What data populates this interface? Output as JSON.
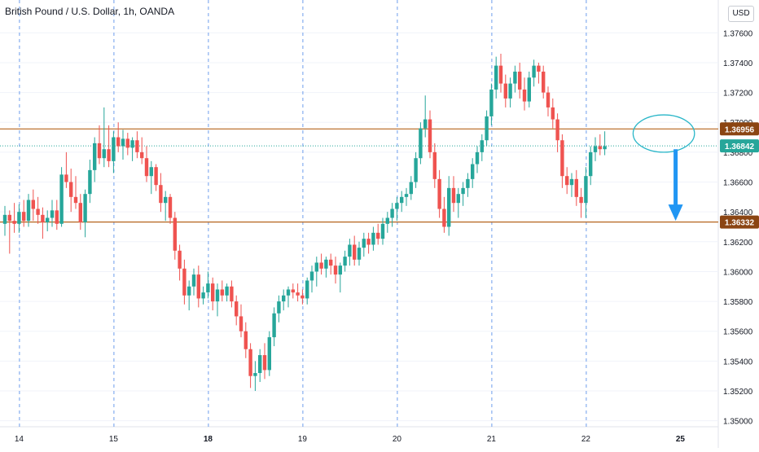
{
  "header": {
    "symbol_title": "British Pound / U.S. Dollar, 1h, OANDA",
    "currency_button": "USD"
  },
  "colors": {
    "up": "#26a69a",
    "down": "#ef5350",
    "level_line": "#b5651d",
    "level_label_bg": "#8b4513",
    "price_label_bg": "#26a69a",
    "annotation": "#29b6c8",
    "arrow": "#2196f3",
    "session_line": "#4a86e8"
  },
  "chart_data": {
    "type": "candlestick",
    "symbol": "British Pound / U.S. Dollar",
    "interval": "1h",
    "source": "OANDA",
    "ylim": [
      1.3496,
      1.3782
    ],
    "y_ticks": [
      "1.35000",
      "1.35200",
      "1.35400",
      "1.35600",
      "1.35800",
      "1.36000",
      "1.36200",
      "1.36400",
      "1.36600",
      "1.36800",
      "1.37000",
      "1.37200",
      "1.37400",
      "1.37600"
    ],
    "x_ticks": [
      {
        "label": "14",
        "bar": 3,
        "bold": false
      },
      {
        "label": "15",
        "bar": 23,
        "bold": false
      },
      {
        "label": "18",
        "bar": 43,
        "bold": true
      },
      {
        "label": "19",
        "bar": 63,
        "bold": false
      },
      {
        "label": "20",
        "bar": 83,
        "bold": false
      },
      {
        "label": "21",
        "bar": 103,
        "bold": false
      },
      {
        "label": "22",
        "bar": 123,
        "bold": false
      },
      {
        "label": "25",
        "bar": 143,
        "bold": true
      }
    ],
    "session_lines_at_bar": [
      3,
      23,
      43,
      63,
      83,
      103,
      123
    ],
    "horizontal_levels": [
      {
        "price": 1.36956,
        "label": "1.36956"
      },
      {
        "price": 1.36332,
        "label": "1.36332"
      }
    ],
    "last_price": {
      "price": 1.36842,
      "label": "1.36842"
    },
    "annotations": [
      {
        "type": "ellipse",
        "bar_from": 133,
        "bar_to": 146,
        "price_from": 1.368,
        "price_to": 1.3705
      },
      {
        "type": "arrow_down",
        "bar": 142,
        "price_from": 1.3682,
        "price_to": 1.3634
      }
    ],
    "candles": [
      [
        1.3632,
        1.3644,
        1.3624,
        1.3638
      ],
      [
        1.3638,
        1.3641,
        1.3612,
        1.3634
      ],
      [
        1.3634,
        1.3646,
        1.3626,
        1.3632
      ],
      [
        1.3632,
        1.3645,
        1.3626,
        1.364
      ],
      [
        1.364,
        1.3648,
        1.363,
        1.3634
      ],
      [
        1.3634,
        1.3652,
        1.363,
        1.3648
      ],
      [
        1.3648,
        1.3655,
        1.3634,
        1.3642
      ],
      [
        1.3642,
        1.365,
        1.3632,
        1.3638
      ],
      [
        1.3638,
        1.3643,
        1.3622,
        1.3633
      ],
      [
        1.3633,
        1.3641,
        1.3627,
        1.3636
      ],
      [
        1.3636,
        1.3648,
        1.363,
        1.3641
      ],
      [
        1.3641,
        1.3648,
        1.3628,
        1.3632
      ],
      [
        1.3632,
        1.367,
        1.363,
        1.3665
      ],
      [
        1.3665,
        1.368,
        1.3656,
        1.366
      ],
      [
        1.366,
        1.3669,
        1.364,
        1.365
      ],
      [
        1.365,
        1.3664,
        1.3642,
        1.3646
      ],
      [
        1.3646,
        1.3652,
        1.3628,
        1.3633
      ],
      [
        1.3633,
        1.3655,
        1.3623,
        1.3652
      ],
      [
        1.3652,
        1.3675,
        1.3646,
        1.3668
      ],
      [
        1.3668,
        1.369,
        1.366,
        1.3686
      ],
      [
        1.3686,
        1.3698,
        1.3672,
        1.3676
      ],
      [
        1.3676,
        1.371,
        1.367,
        1.3682
      ],
      [
        1.3682,
        1.3698,
        1.367,
        1.3674
      ],
      [
        1.3674,
        1.3694,
        1.3666,
        1.369
      ],
      [
        1.369,
        1.37,
        1.368,
        1.3684
      ],
      [
        1.3684,
        1.3695,
        1.3675,
        1.3689
      ],
      [
        1.3689,
        1.3693,
        1.3678,
        1.3683
      ],
      [
        1.3683,
        1.369,
        1.3674,
        1.3688
      ],
      [
        1.3688,
        1.3694,
        1.3676,
        1.368
      ],
      [
        1.368,
        1.369,
        1.3672,
        1.3676
      ],
      [
        1.3676,
        1.3684,
        1.366,
        1.3664
      ],
      [
        1.3664,
        1.3674,
        1.3652,
        1.367
      ],
      [
        1.367,
        1.3672,
        1.3654,
        1.3658
      ],
      [
        1.3658,
        1.3666,
        1.364,
        1.3646
      ],
      [
        1.3646,
        1.3654,
        1.3634,
        1.365
      ],
      [
        1.365,
        1.3652,
        1.3632,
        1.3636
      ],
      [
        1.3636,
        1.364,
        1.3608,
        1.3614
      ],
      [
        1.3614,
        1.3618,
        1.3594,
        1.3602
      ],
      [
        1.3602,
        1.3608,
        1.3578,
        1.3584
      ],
      [
        1.3584,
        1.3594,
        1.3574,
        1.359
      ],
      [
        1.359,
        1.3602,
        1.3584,
        1.3598
      ],
      [
        1.3598,
        1.3604,
        1.3576,
        1.3582
      ],
      [
        1.3582,
        1.359,
        1.3578,
        1.3586
      ],
      [
        1.3586,
        1.36,
        1.3582,
        1.3592
      ],
      [
        1.3592,
        1.3596,
        1.3574,
        1.358
      ],
      [
        1.358,
        1.3592,
        1.357,
        1.3588
      ],
      [
        1.3588,
        1.3594,
        1.358,
        1.3584
      ],
      [
        1.3584,
        1.3592,
        1.358,
        1.359
      ],
      [
        1.359,
        1.3594,
        1.3576,
        1.358
      ],
      [
        1.358,
        1.3584,
        1.3564,
        1.357
      ],
      [
        1.357,
        1.3578,
        1.3556,
        1.356
      ],
      [
        1.356,
        1.3566,
        1.3542,
        1.3548
      ],
      [
        1.3548,
        1.3552,
        1.3522,
        1.353
      ],
      [
        1.353,
        1.354,
        1.352,
        1.3532
      ],
      [
        1.3532,
        1.3548,
        1.3526,
        1.3544
      ],
      [
        1.3544,
        1.3552,
        1.3528,
        1.3534
      ],
      [
        1.3534,
        1.356,
        1.353,
        1.3556
      ],
      [
        1.3556,
        1.3576,
        1.355,
        1.3572
      ],
      [
        1.3572,
        1.3584,
        1.3566,
        1.358
      ],
      [
        1.358,
        1.3588,
        1.3574,
        1.3584
      ],
      [
        1.3584,
        1.359,
        1.3576,
        1.3588
      ],
      [
        1.3588,
        1.3592,
        1.3582,
        1.3586
      ],
      [
        1.3586,
        1.3592,
        1.358,
        1.3584
      ],
      [
        1.3584,
        1.3588,
        1.3578,
        1.3582
      ],
      [
        1.3582,
        1.3596,
        1.3578,
        1.3594
      ],
      [
        1.3594,
        1.3604,
        1.3586,
        1.36
      ],
      [
        1.36,
        1.361,
        1.359,
        1.3606
      ],
      [
        1.3606,
        1.3612,
        1.3598,
        1.3602
      ],
      [
        1.3602,
        1.361,
        1.3596,
        1.3608
      ],
      [
        1.3608,
        1.3612,
        1.3598,
        1.3604
      ],
      [
        1.3604,
        1.361,
        1.3592,
        1.3598
      ],
      [
        1.3598,
        1.3606,
        1.3586,
        1.3604
      ],
      [
        1.3604,
        1.3614,
        1.36,
        1.361
      ],
      [
        1.361,
        1.3622,
        1.3604,
        1.3618
      ],
      [
        1.3618,
        1.3624,
        1.3604,
        1.3608
      ],
      [
        1.3608,
        1.362,
        1.3604,
        1.3616
      ],
      [
        1.3616,
        1.3626,
        1.361,
        1.3622
      ],
      [
        1.3622,
        1.3626,
        1.3612,
        1.3618
      ],
      [
        1.3618,
        1.363,
        1.3614,
        1.3626
      ],
      [
        1.3626,
        1.3632,
        1.3618,
        1.3622
      ],
      [
        1.3622,
        1.3636,
        1.3618,
        1.3632
      ],
      [
        1.3632,
        1.364,
        1.3626,
        1.3636
      ],
      [
        1.3636,
        1.3646,
        1.363,
        1.3642
      ],
      [
        1.3642,
        1.365,
        1.3634,
        1.3646
      ],
      [
        1.3646,
        1.3654,
        1.364,
        1.365
      ],
      [
        1.365,
        1.3656,
        1.3644,
        1.3652
      ],
      [
        1.3652,
        1.3664,
        1.3648,
        1.366
      ],
      [
        1.366,
        1.368,
        1.3656,
        1.3676
      ],
      [
        1.3676,
        1.37,
        1.3672,
        1.3696
      ],
      [
        1.3696,
        1.3718,
        1.369,
        1.3702
      ],
      [
        1.3702,
        1.3708,
        1.3676,
        1.368
      ],
      [
        1.368,
        1.3686,
        1.3656,
        1.3662
      ],
      [
        1.3662,
        1.3668,
        1.3636,
        1.3642
      ],
      [
        1.3642,
        1.365,
        1.3626,
        1.363
      ],
      [
        1.363,
        1.3664,
        1.3624,
        1.3656
      ],
      [
        1.3656,
        1.3664,
        1.364,
        1.3646
      ],
      [
        1.3646,
        1.3656,
        1.3636,
        1.3652
      ],
      [
        1.3652,
        1.366,
        1.3644,
        1.3656
      ],
      [
        1.3656,
        1.3666,
        1.365,
        1.3662
      ],
      [
        1.3662,
        1.3676,
        1.3656,
        1.3672
      ],
      [
        1.3672,
        1.3684,
        1.3666,
        1.368
      ],
      [
        1.368,
        1.3692,
        1.3674,
        1.3688
      ],
      [
        1.3688,
        1.3708,
        1.3684,
        1.3704
      ],
      [
        1.3704,
        1.3726,
        1.3698,
        1.3722
      ],
      [
        1.3722,
        1.3744,
        1.3716,
        1.3738
      ],
      [
        1.3738,
        1.3746,
        1.372,
        1.3726
      ],
      [
        1.3726,
        1.3732,
        1.371,
        1.3716
      ],
      [
        1.3716,
        1.373,
        1.371,
        1.3726
      ],
      [
        1.3726,
        1.3738,
        1.372,
        1.3734
      ],
      [
        1.3734,
        1.374,
        1.3716,
        1.3722
      ],
      [
        1.3722,
        1.373,
        1.3708,
        1.3714
      ],
      [
        1.3714,
        1.3734,
        1.371,
        1.373
      ],
      [
        1.373,
        1.3742,
        1.3724,
        1.3738
      ],
      [
        1.3738,
        1.374,
        1.3726,
        1.3734
      ],
      [
        1.3734,
        1.3738,
        1.3716,
        1.372
      ],
      [
        1.372,
        1.3724,
        1.3704,
        1.371
      ],
      [
        1.371,
        1.3716,
        1.3696,
        1.3702
      ],
      [
        1.3702,
        1.3706,
        1.368,
        1.3688
      ],
      [
        1.3688,
        1.3692,
        1.3656,
        1.3664
      ],
      [
        1.3664,
        1.367,
        1.3652,
        1.3658
      ],
      [
        1.3658,
        1.3666,
        1.365,
        1.3662
      ],
      [
        1.3662,
        1.3668,
        1.3644,
        1.365
      ],
      [
        1.365,
        1.3656,
        1.3636,
        1.3646
      ],
      [
        1.3646,
        1.367,
        1.3636,
        1.3664
      ],
      [
        1.3664,
        1.3684,
        1.3658,
        1.368
      ],
      [
        1.368,
        1.369,
        1.3674,
        1.3684
      ],
      [
        1.3684,
        1.3692,
        1.3678,
        1.3682
      ],
      [
        1.3682,
        1.3694,
        1.3678,
        1.3684
      ]
    ]
  }
}
